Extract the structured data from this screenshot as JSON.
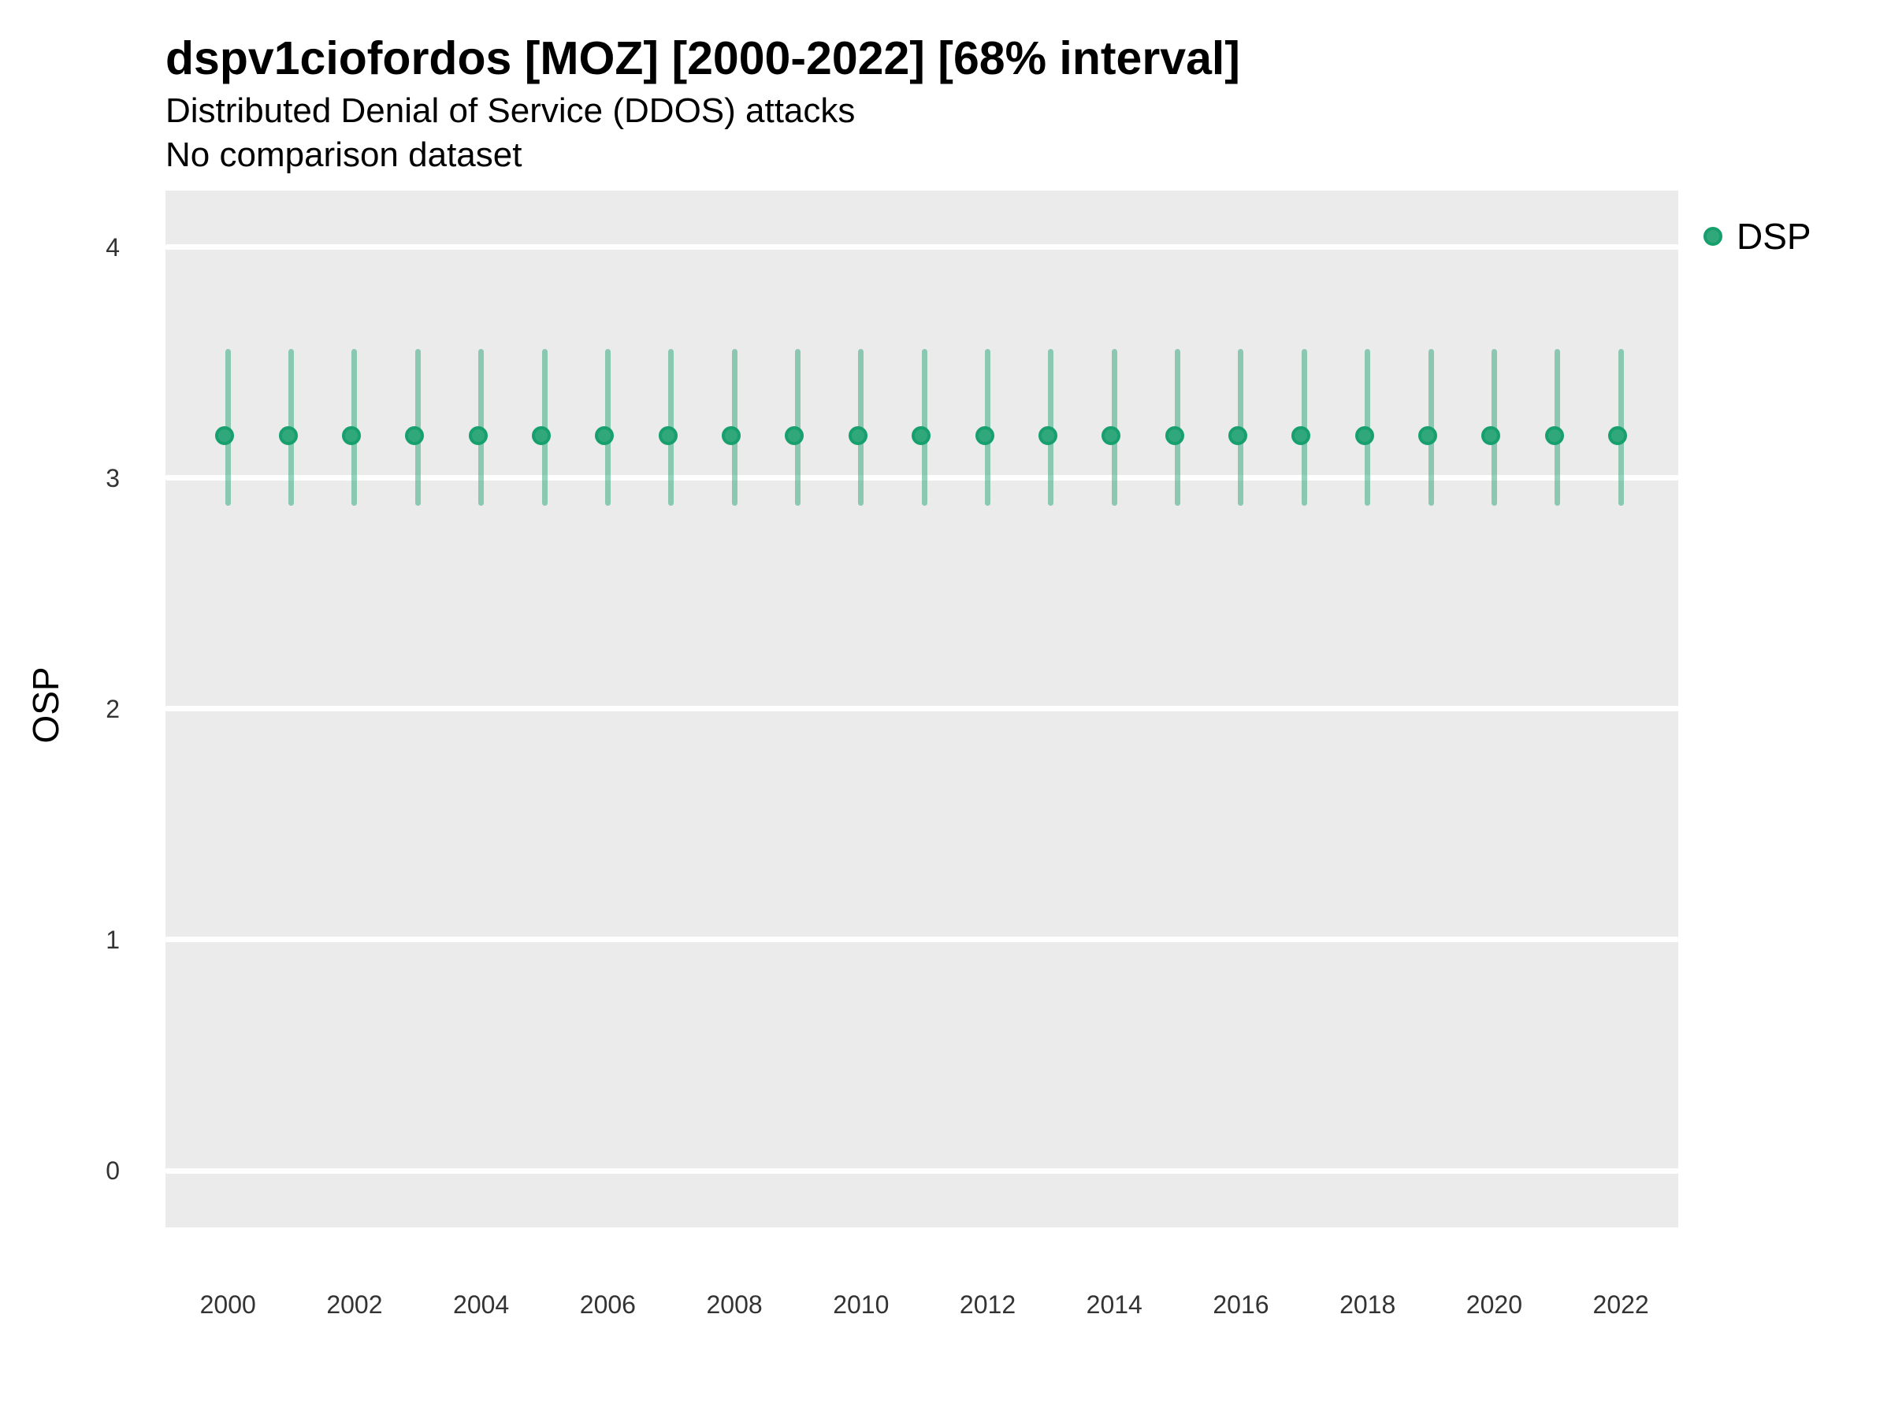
{
  "chart_data": {
    "type": "pointrange",
    "title": "dspv1ciofordos [MOZ] [2000-2022] [68% interval]",
    "subtitle": "Distributed Denial of Service (DDOS) attacks",
    "note": "No comparison dataset",
    "ylabel": "OSP",
    "xlabel": "",
    "interval_level": "68%",
    "ylim": [
      0,
      4
    ],
    "yticks": [
      0,
      1,
      2,
      3,
      4
    ],
    "xtick_years": [
      2000,
      2002,
      2004,
      2006,
      2008,
      2010,
      2012,
      2014,
      2016,
      2018,
      2020,
      2022
    ],
    "grid": "horizontal-major-only",
    "legend_position": "right",
    "series": [
      {
        "name": "DSP",
        "color": "#2aa679",
        "x": [
          2000,
          2001,
          2002,
          2003,
          2004,
          2005,
          2006,
          2007,
          2008,
          2009,
          2010,
          2011,
          2012,
          2013,
          2014,
          2015,
          2016,
          2017,
          2018,
          2019,
          2020,
          2021,
          2022
        ],
        "y": [
          3.17,
          3.17,
          3.17,
          3.17,
          3.17,
          3.17,
          3.17,
          3.17,
          3.17,
          3.17,
          3.17,
          3.17,
          3.17,
          3.17,
          3.17,
          3.17,
          3.17,
          3.17,
          3.17,
          3.17,
          3.17,
          3.17,
          3.17
        ],
        "y_lo": [
          2.88,
          2.88,
          2.88,
          2.88,
          2.88,
          2.88,
          2.88,
          2.88,
          2.88,
          2.88,
          2.88,
          2.88,
          2.88,
          2.88,
          2.88,
          2.88,
          2.88,
          2.88,
          2.88,
          2.88,
          2.88,
          2.88,
          2.88
        ],
        "y_hi": [
          3.56,
          3.56,
          3.56,
          3.56,
          3.56,
          3.56,
          3.56,
          3.56,
          3.56,
          3.56,
          3.56,
          3.56,
          3.56,
          3.56,
          3.56,
          3.56,
          3.56,
          3.56,
          3.56,
          3.56,
          3.56,
          3.56,
          3.56
        ]
      }
    ]
  },
  "colors": {
    "panel_bg": "#ebebeb",
    "gridline": "#ffffff",
    "point_fill": "#31a87c",
    "point_stroke": "#189f6e",
    "interval_bar": "rgba(42,166,121,0.5)",
    "title_text": "#000000",
    "tick_text": "#333333"
  }
}
